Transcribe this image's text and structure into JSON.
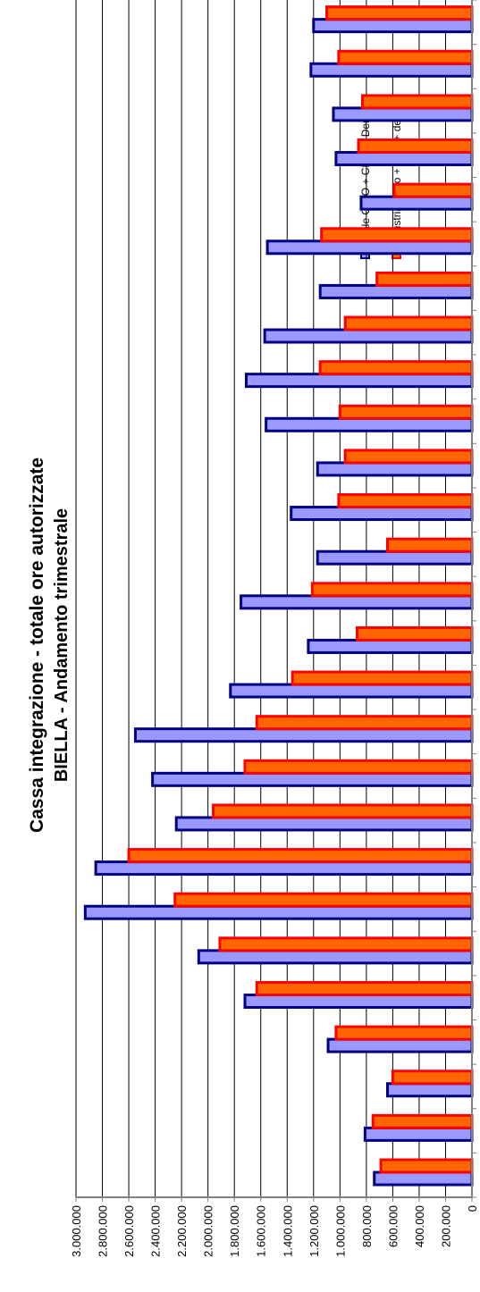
{
  "chart_data": {
    "type": "bar",
    "orientation": "horizontal (page rotated 90°, value axis along the bottom)",
    "title": "Cassa integrazione - totale ore autorizzate",
    "subtitle": "BIELLA - Andamento trimestrale",
    "xlim": [
      0,
      3000000
    ],
    "ticks": [
      {
        "value": 3000000,
        "label": "3.000.000"
      },
      {
        "value": 2800000,
        "label": "2.800.000"
      },
      {
        "value": 2600000,
        "label": "2.600.000"
      },
      {
        "value": 2400000,
        "label": "2.400.000"
      },
      {
        "value": 2200000,
        "label": "2.200.000"
      },
      {
        "value": 2000000,
        "label": "2.000.000"
      },
      {
        "value": 1800000,
        "label": "1.800.000"
      },
      {
        "value": 1600000,
        "label": "1.600.000"
      },
      {
        "value": 1400000,
        "label": "1.400.000"
      },
      {
        "value": 1200000,
        "label": "1.200.000"
      },
      {
        "value": 1000000,
        "label": "1.000.000"
      },
      {
        "value": 800000,
        "label": "800.000"
      },
      {
        "value": 600000,
        "label": "600.000"
      },
      {
        "value": 400000,
        "label": "400.000"
      },
      {
        "value": 200000,
        "label": "200.000"
      },
      {
        "value": 0,
        "label": "0"
      }
    ],
    "grid": true,
    "legend_position": "top-right",
    "series": [
      {
        "name": "Totale CIGO + CIGS + Deroga",
        "fill": "#9999FF",
        "border": "#000080",
        "values": [
          740000,
          810000,
          640000,
          1090000,
          1720000,
          2070000,
          2930000,
          2850000,
          2240000,
          2420000,
          2550000,
          1830000,
          1240000,
          1750000,
          1170000,
          1370000,
          1170000,
          1560000,
          1710000,
          1570000,
          1150000,
          1550000,
          840000,
          1030000,
          1050000,
          1220000,
          1200000
        ]
      },
      {
        "name": "Industria: Cigo + Cigs + deroga",
        "fill": "#FF6600",
        "border": "#FF0000",
        "values": [
          690000,
          750000,
          600000,
          1030000,
          1630000,
          1910000,
          2250000,
          2600000,
          1960000,
          1720000,
          1630000,
          1360000,
          870000,
          1210000,
          640000,
          1010000,
          960000,
          1000000,
          1150000,
          960000,
          720000,
          1140000,
          590000,
          860000,
          830000,
          1010000,
          1100000
        ]
      }
    ]
  },
  "colors": {
    "series1_fill": "#9999FF",
    "series1_border": "#000080",
    "series2_fill": "#FF6600",
    "series2_border": "#FF0000",
    "grid": "#000000",
    "axis": "#808080"
  }
}
